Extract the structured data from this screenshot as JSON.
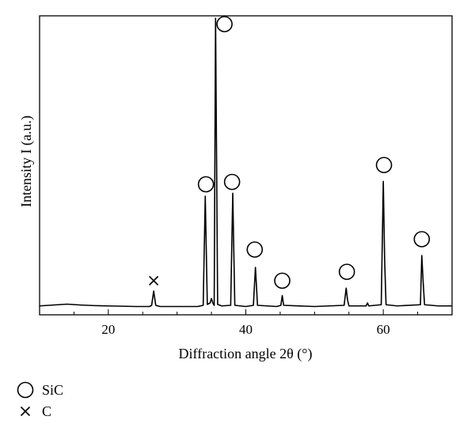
{
  "chart_data": {
    "type": "line",
    "title": "",
    "xlabel": "Diffraction angle 2θ (°)",
    "ylabel": "Intensity I (a.u.)",
    "xlim": [
      10,
      70
    ],
    "ylim": [
      0,
      100
    ],
    "xticks": [
      20,
      40,
      60
    ],
    "x_tick_labels": [
      "20",
      "40",
      "60"
    ],
    "grid": false,
    "series": [
      {
        "values_description_free": true,
        "points": [
          [
            10,
            3.0
          ],
          [
            12,
            3.3
          ],
          [
            14,
            3.6
          ],
          [
            16,
            3.3
          ],
          [
            18,
            3.1
          ],
          [
            20,
            3.0
          ],
          [
            22,
            2.9
          ],
          [
            24,
            2.8
          ],
          [
            26,
            2.8
          ],
          [
            26.3,
            3.2
          ],
          [
            26.6,
            8.0
          ],
          [
            26.9,
            3.2
          ],
          [
            27.5,
            2.8
          ],
          [
            30,
            2.8
          ],
          [
            33,
            2.8
          ],
          [
            33.8,
            3.2
          ],
          [
            34.1,
            40.0
          ],
          [
            34.4,
            3.5
          ],
          [
            34.8,
            4.0
          ],
          [
            35.0,
            5.5
          ],
          [
            35.2,
            4.0
          ],
          [
            35.4,
            3.2
          ],
          [
            35.6,
            100.0
          ],
          [
            35.9,
            3.5
          ],
          [
            36.5,
            3.0
          ],
          [
            37.8,
            3.2
          ],
          [
            38.1,
            41.0
          ],
          [
            38.4,
            3.2
          ],
          [
            40,
            2.8
          ],
          [
            41.1,
            3.2
          ],
          [
            41.4,
            16.0
          ],
          [
            41.7,
            3.2
          ],
          [
            44.5,
            2.8
          ],
          [
            45.1,
            3.2
          ],
          [
            45.3,
            6.5
          ],
          [
            45.5,
            3.2
          ],
          [
            50,
            2.8
          ],
          [
            54.3,
            3.2
          ],
          [
            54.6,
            9.0
          ],
          [
            54.8,
            5.0
          ],
          [
            55.0,
            3.0
          ],
          [
            57.5,
            3.0
          ],
          [
            57.7,
            4.0
          ],
          [
            57.9,
            3.0
          ],
          [
            59.7,
            3.4
          ],
          [
            60.0,
            45.0
          ],
          [
            60.2,
            18.0
          ],
          [
            60.4,
            3.4
          ],
          [
            62,
            3.0
          ],
          [
            65.4,
            3.4
          ],
          [
            65.6,
            20.0
          ],
          [
            65.8,
            11.0
          ],
          [
            66.0,
            3.4
          ],
          [
            68,
            3.0
          ],
          [
            70,
            3.0
          ]
        ]
      }
    ],
    "annotations": [
      {
        "marker": "cross",
        "x": 26.6,
        "y": 11.5
      },
      {
        "marker": "circle",
        "x": 34.2,
        "y": 44.0
      },
      {
        "marker": "circle",
        "x": 36.9,
        "y": 98.0
      },
      {
        "marker": "circle",
        "x": 38.0,
        "y": 44.8
      },
      {
        "marker": "circle",
        "x": 41.3,
        "y": 22.0
      },
      {
        "marker": "circle",
        "x": 45.3,
        "y": 11.5
      },
      {
        "marker": "circle",
        "x": 54.7,
        "y": 14.5
      },
      {
        "marker": "circle",
        "x": 60.1,
        "y": 50.5
      },
      {
        "marker": "circle",
        "x": 65.6,
        "y": 25.5
      }
    ],
    "legend": {
      "placement": "bottom-left",
      "items": [
        {
          "marker": "circle",
          "label": "SiC"
        },
        {
          "marker": "cross",
          "label": "C"
        }
      ]
    }
  }
}
